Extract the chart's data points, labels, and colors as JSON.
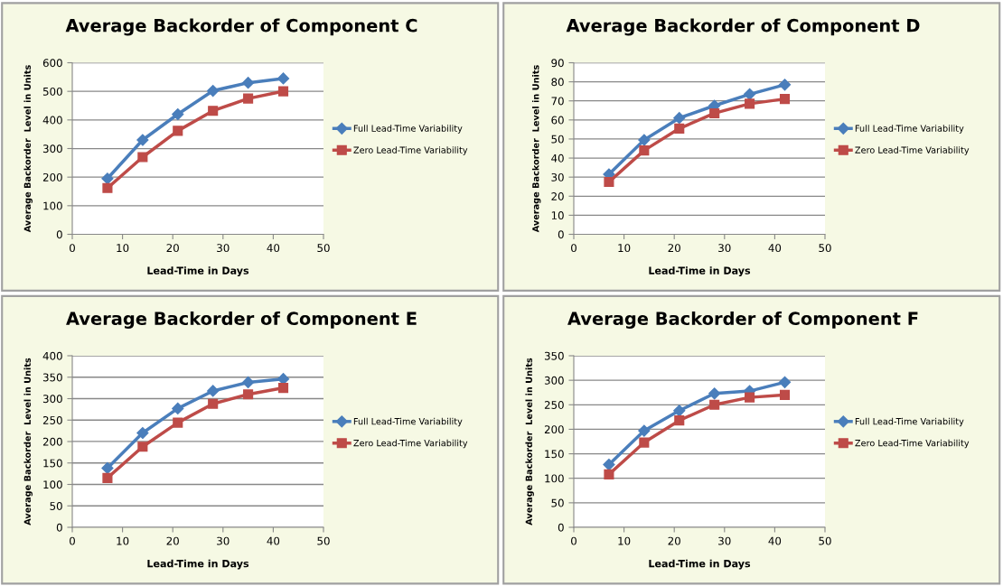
{
  "chart_data": [
    {
      "type": "line",
      "title": "Average Backorder of Component C",
      "xlabel": "Lead-Time in Days",
      "ylabel": "Average Backorder  Level in Units",
      "x": [
        7,
        14,
        21,
        28,
        35,
        42
      ],
      "xlim": [
        0,
        50
      ],
      "xticks": [
        0,
        10,
        20,
        30,
        40,
        50
      ],
      "ylim": [
        0,
        600
      ],
      "yticks": [
        0,
        100,
        200,
        300,
        400,
        500,
        600
      ],
      "grid": "y",
      "legend": "right",
      "series": [
        {
          "name": "Full Lead-Time Variability",
          "color": "#4a7ebb",
          "marker": "diamond",
          "values": [
            195,
            330,
            420,
            502,
            530,
            545
          ]
        },
        {
          "name": "Zero Lead-Time Variability",
          "color": "#be4b48",
          "marker": "square",
          "values": [
            162,
            270,
            362,
            432,
            475,
            500
          ]
        }
      ]
    },
    {
      "type": "line",
      "title": "Average Backorder of Component D",
      "xlabel": "Lead-Time in Days",
      "ylabel": "Average Backorder  Level in Units",
      "x": [
        7,
        14,
        21,
        28,
        35,
        42
      ],
      "xlim": [
        0,
        50
      ],
      "xticks": [
        0,
        10,
        20,
        30,
        40,
        50
      ],
      "ylim": [
        0,
        90
      ],
      "yticks": [
        0,
        10,
        20,
        30,
        40,
        50,
        60,
        70,
        80,
        90
      ],
      "grid": "y",
      "legend": "right",
      "series": [
        {
          "name": "Full Lead-Time Variability",
          "color": "#4a7ebb",
          "marker": "diamond",
          "values": [
            31.5,
            49.5,
            61,
            67.5,
            73.5,
            78.5
          ]
        },
        {
          "name": "Zero Lead-Time Variability",
          "color": "#be4b48",
          "marker": "square",
          "values": [
            27.5,
            44,
            55.5,
            63.5,
            68.5,
            71
          ]
        }
      ]
    },
    {
      "type": "line",
      "title": "Average Backorder of Component E",
      "xlabel": "Lead-Time in Days",
      "ylabel": "Average Backorder  Level in Units",
      "x": [
        7,
        14,
        21,
        28,
        35,
        42
      ],
      "xlim": [
        0,
        50
      ],
      "xticks": [
        0,
        10,
        20,
        30,
        40,
        50
      ],
      "ylim": [
        0,
        400
      ],
      "yticks": [
        0,
        50,
        100,
        150,
        200,
        250,
        300,
        350,
        400
      ],
      "grid": "y",
      "legend": "right",
      "series": [
        {
          "name": "Full Lead-Time Variability",
          "color": "#4a7ebb",
          "marker": "diamond",
          "values": [
            138,
            220,
            277,
            318,
            338,
            346
          ]
        },
        {
          "name": "Zero Lead-Time Variability",
          "color": "#be4b48",
          "marker": "square",
          "values": [
            115,
            188,
            244,
            288,
            310,
            325
          ]
        }
      ]
    },
    {
      "type": "line",
      "title": "Average Backorder of Component F",
      "xlabel": "Lead-Time in Days",
      "ylabel": "Average Backorder  Level in Units",
      "x": [
        7,
        14,
        21,
        28,
        35,
        42
      ],
      "xlim": [
        0,
        50
      ],
      "xticks": [
        0,
        10,
        20,
        30,
        40,
        50
      ],
      "ylim": [
        0,
        350
      ],
      "yticks": [
        0,
        50,
        100,
        150,
        200,
        250,
        300,
        350
      ],
      "grid": "y",
      "legend": "right",
      "series": [
        {
          "name": "Full Lead-Time Variability",
          "color": "#4a7ebb",
          "marker": "diamond",
          "values": [
            128,
            197,
            238,
            273,
            278,
            296
          ]
        },
        {
          "name": "Zero Lead-Time Variability",
          "color": "#be4b48",
          "marker": "square",
          "values": [
            108,
            173,
            218,
            250,
            265,
            270
          ]
        }
      ]
    }
  ]
}
